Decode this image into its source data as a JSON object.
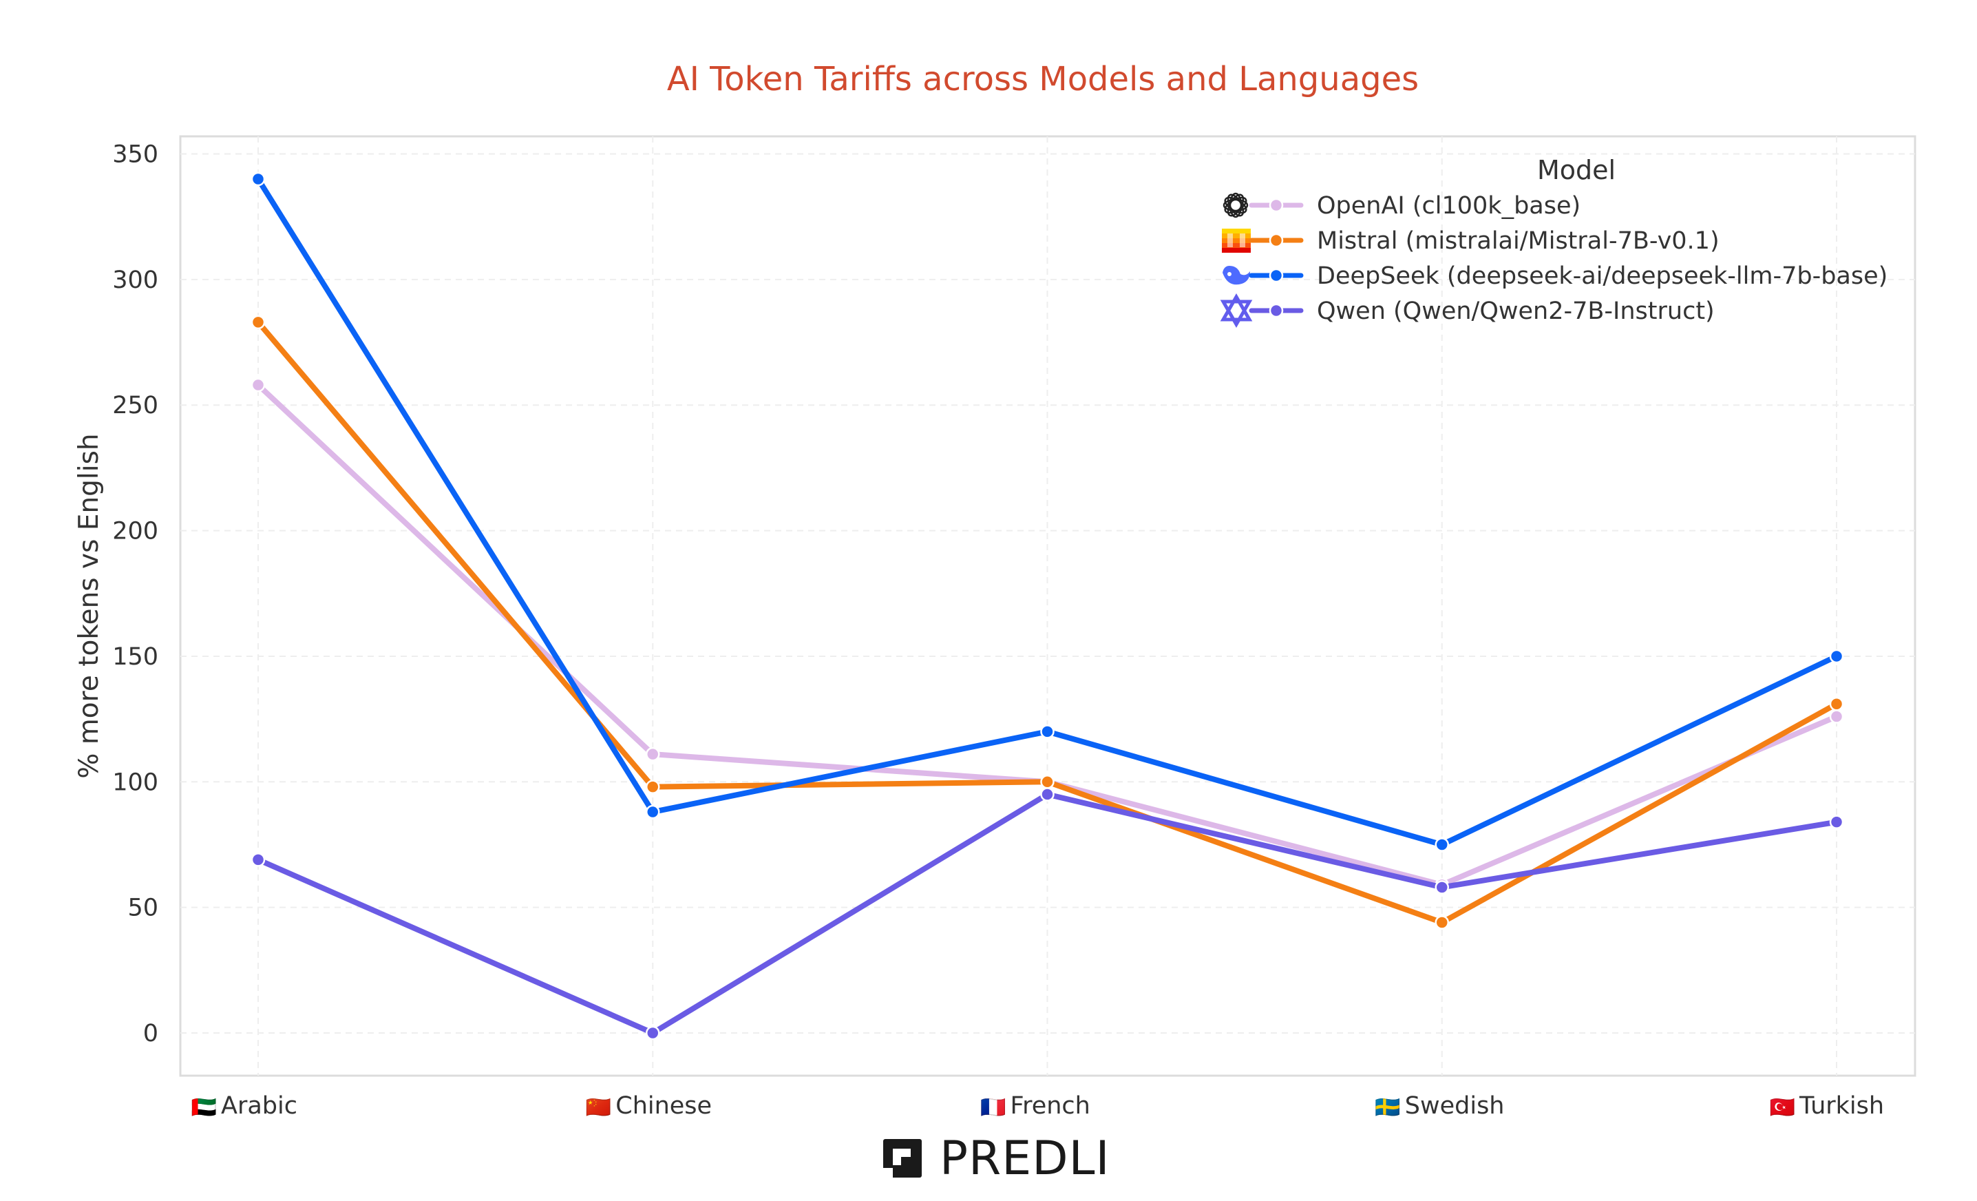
{
  "chart_data": {
    "type": "line",
    "title": "AI Token Tariffs across Models and Languages",
    "title_color": "#D14A2E",
    "xlabel": "",
    "ylabel": "% more tokens vs English",
    "ylim": [
      -17,
      357
    ],
    "yticks": [
      0,
      50,
      100,
      150,
      200,
      250,
      300,
      350
    ],
    "grid": true,
    "categories": [
      "Arabic",
      "Chinese",
      "French",
      "Swedish",
      "Turkish"
    ],
    "category_flags": [
      "🇦🇪",
      "🇨🇳",
      "🇫🇷",
      "🇸🇪",
      "🇹🇷"
    ],
    "legend": {
      "title": "Model",
      "placement": "top-right"
    },
    "series": [
      {
        "name": "OpenAI (cl100k_base)",
        "color": "#DDB8E8",
        "icon": "openai-logo-icon",
        "values": [
          258,
          111,
          100,
          59,
          126
        ]
      },
      {
        "name": "Mistral (mistralai/Mistral-7B-v0.1)",
        "color": "#F47F14",
        "icon": "mistral-logo-icon",
        "values": [
          283,
          98,
          100,
          44,
          131
        ]
      },
      {
        "name": "DeepSeek (deepseek-ai/deepseek-llm-7b-base)",
        "color": "#0A63F6",
        "icon": "deepseek-logo-icon",
        "values": [
          340,
          88,
          120,
          75,
          150
        ]
      },
      {
        "name": "Qwen (Qwen/Qwen2-7B-Instruct)",
        "color": "#6A5BE4",
        "icon": "qwen-logo-icon",
        "values": [
          69,
          0,
          95,
          58,
          84
        ]
      }
    ]
  },
  "footer": {
    "brand": "PREDLI"
  }
}
